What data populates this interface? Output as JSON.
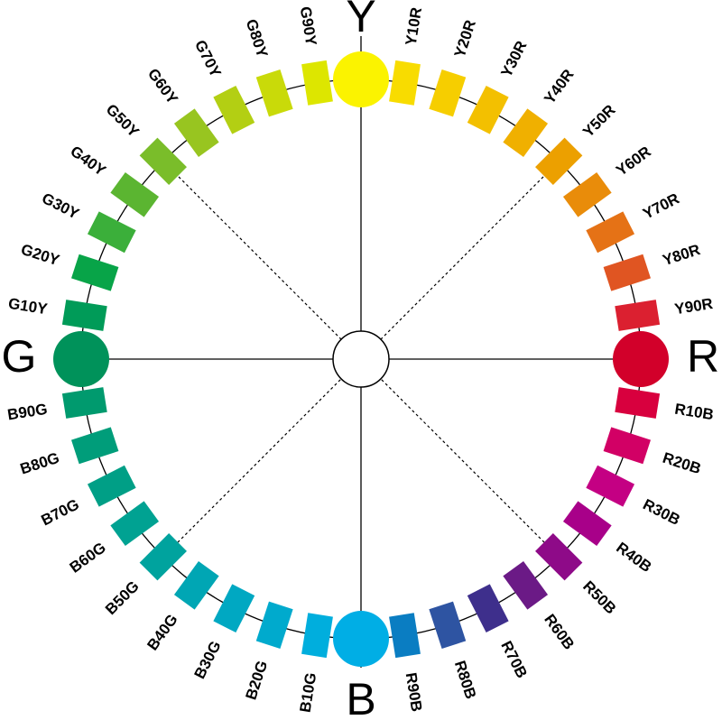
{
  "primaries": [
    {
      "label": "Y",
      "color": "#FBF300"
    },
    {
      "label": "R",
      "color": "#D2002A"
    },
    {
      "label": "B",
      "color": "#00AEE5"
    },
    {
      "label": "G",
      "color": "#00925A"
    }
  ],
  "hues": [
    {
      "label": "Y10R",
      "color": "#F8DC00"
    },
    {
      "label": "Y20R",
      "color": "#F6CE00"
    },
    {
      "label": "Y30R",
      "color": "#F3C000"
    },
    {
      "label": "Y40R",
      "color": "#F0B000"
    },
    {
      "label": "Y50R",
      "color": "#ECA000"
    },
    {
      "label": "Y60R",
      "color": "#E98C0A"
    },
    {
      "label": "Y70R",
      "color": "#E57216"
    },
    {
      "label": "Y80R",
      "color": "#E05522"
    },
    {
      "label": "Y90R",
      "color": "#DB2030"
    },
    {
      "label": "R10B",
      "color": "#D8003E"
    },
    {
      "label": "R20B",
      "color": "#D20065"
    },
    {
      "label": "R30B",
      "color": "#C40083"
    },
    {
      "label": "R40B",
      "color": "#A80089"
    },
    {
      "label": "R50B",
      "color": "#8E0A88"
    },
    {
      "label": "R60B",
      "color": "#6B1A86"
    },
    {
      "label": "R70B",
      "color": "#3E2F8C"
    },
    {
      "label": "R80B",
      "color": "#2E54A2"
    },
    {
      "label": "R90B",
      "color": "#0A7DC2"
    },
    {
      "label": "B10G",
      "color": "#00AEDD"
    },
    {
      "label": "B20G",
      "color": "#00AACD"
    },
    {
      "label": "B30G",
      "color": "#00A8C2"
    },
    {
      "label": "B40G",
      "color": "#00A6B4"
    },
    {
      "label": "B50G",
      "color": "#00A39E"
    },
    {
      "label": "B60G",
      "color": "#00A292"
    },
    {
      "label": "B70G",
      "color": "#009F86"
    },
    {
      "label": "B80G",
      "color": "#009D7A"
    },
    {
      "label": "B90G",
      "color": "#009A6E"
    },
    {
      "label": "G10Y",
      "color": "#009B58"
    },
    {
      "label": "G20Y",
      "color": "#08A448"
    },
    {
      "label": "G30Y",
      "color": "#3BAF3A"
    },
    {
      "label": "G40Y",
      "color": "#5BB531"
    },
    {
      "label": "G50Y",
      "color": "#7ABD2A"
    },
    {
      "label": "G60Y",
      "color": "#98C520"
    },
    {
      "label": "G70Y",
      "color": "#B3CF13"
    },
    {
      "label": "G80Y",
      "color": "#C9DA09"
    },
    {
      "label": "G90Y",
      "color": "#DDE600"
    }
  ]
}
